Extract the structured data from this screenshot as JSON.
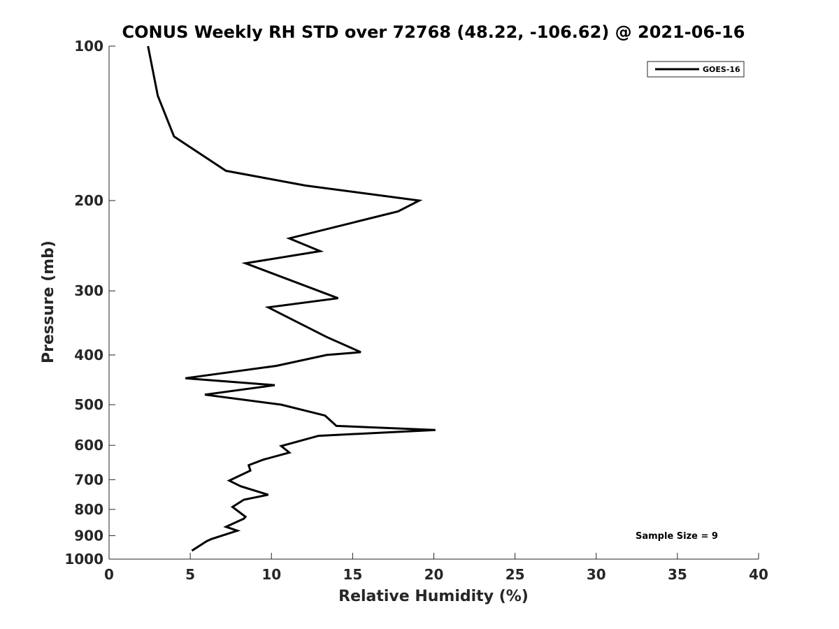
{
  "chart_data": {
    "type": "line",
    "title": "CONUS Weekly RH STD over 72768 (48.22, -106.62) @ 2021-06-16",
    "xlabel": "Relative Humidity (%)",
    "ylabel": "Pressure (mb)",
    "xlim": [
      0,
      40
    ],
    "ylim": [
      100,
      1000
    ],
    "y_scale": "log",
    "y_reversed": true,
    "x_ticks": [
      "0",
      "5",
      "10",
      "15",
      "20",
      "25",
      "30",
      "35",
      "40"
    ],
    "y_ticks": [
      "100",
      "200",
      "300",
      "400",
      "500",
      "600",
      "700",
      "800",
      "900",
      "1000"
    ],
    "legend_position": "top-right",
    "grid": false,
    "annotation": "Sample Size = 9",
    "series": [
      {
        "name": "GOES-16",
        "color": "#000000",
        "x": [
          2.4,
          3.0,
          4.0,
          7.2,
          12.1,
          19.1,
          17.8,
          11.1,
          13.0,
          8.4,
          14.1,
          9.8,
          13.4,
          15.5,
          13.4,
          10.3,
          4.7,
          10.2,
          5.9,
          10.6,
          13.3,
          14.0,
          20.1,
          12.9,
          10.6,
          11.1,
          9.5,
          8.6,
          8.7,
          7.4,
          8.1,
          9.8,
          8.3,
          7.6,
          8.4,
          8.3,
          7.2,
          7.9,
          6.3,
          6.0,
          5.1
        ],
        "y": [
          100,
          125,
          150,
          175,
          187,
          200,
          210,
          237,
          251,
          265,
          310,
          323,
          369,
          395,
          400,
          420,
          444,
          458,
          478,
          500,
          525,
          550,
          560,
          575,
          602,
          620,
          640,
          656,
          672,
          703,
          721,
          749,
          766,
          791,
          827,
          834,
          865,
          880,
          914,
          923,
          963
        ]
      }
    ]
  }
}
